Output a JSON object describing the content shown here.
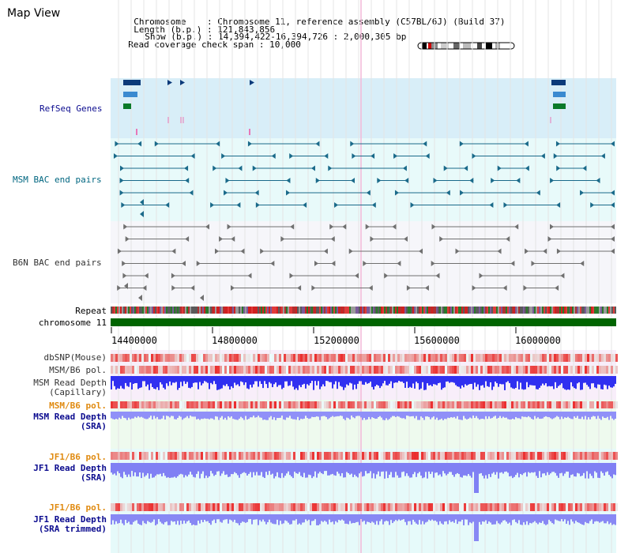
{
  "header": {
    "title": "Map View",
    "chromosome_label": "Chromosome",
    "chromosome_value": "Chromosome 11, reference assembly (C57BL/6J) (Build 37)",
    "length_label": "Length (b.p.)",
    "length_value": "121,843,856",
    "show_label": "Show (b.p.)",
    "show_value": "14,394,422-16,394,726 : 2,000,305 bp",
    "read_coverage_label": "Read coverage check span",
    "read_coverage_value": "10,000"
  },
  "tracks": {
    "refseq_genes": "RefSeq Genes",
    "msm_bac": "MSM BAC end pairs",
    "b6n_bac": "B6N BAC end pairs",
    "repeat": "Repeat",
    "chromosome": "chromosome 11",
    "dbsnp": "dbSNP(Mouse)",
    "msm_b6_pol": "MSM/B6 pol.",
    "msm_depth_cap_1": "MSM Read Depth",
    "msm_depth_cap_2": "(Capillary)",
    "msm_b6_pol_2": "MSM/B6 pol.",
    "msm_depth_sra_1": "MSM Read Depth",
    "msm_depth_sra_2": "(SRA)",
    "jf1_b6_pol": "JF1/B6 pol.",
    "jf1_depth_sra_1": "JF1 Read Depth",
    "jf1_depth_sra_2": "(SRA)",
    "jf1_b6_pol_2": "JF1/B6 pol.",
    "jf1_depth_trim_1": "JF1 Read Depth",
    "jf1_depth_trim_2": "(SRA trimmed)"
  },
  "axis": {
    "ticks": [
      "14400000",
      "14800000",
      "15200000",
      "15600000",
      "16000000"
    ]
  },
  "colors": {
    "refseq_bg": "#d8eef8",
    "bac_msm_bg": "#e8fafa",
    "b6n_bg": "#f6f6fa",
    "snp_bg": "#f8eefa",
    "sra_bg": "#eefaee",
    "jf1_bg": "#e6fafa",
    "chromosome_bar": "#006400",
    "depth_blue": "#3030f0",
    "depth_light": "#9090f8",
    "snp_red": "#e83030"
  }
}
